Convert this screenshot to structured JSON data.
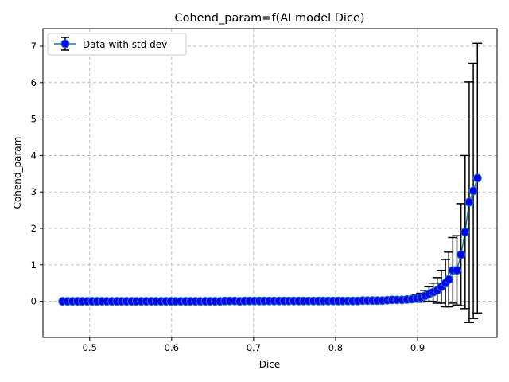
{
  "chart_data": {
    "type": "scatter",
    "title": "Cohend_param=f(AI model Dice)",
    "xlabel": "Dice",
    "ylabel": "Cohend_param",
    "xlim": [
      0.443,
      0.997
    ],
    "ylim": [
      -0.99,
      7.48
    ],
    "xticks": [
      0.5,
      0.6,
      0.7,
      0.8,
      0.9
    ],
    "yticks": [
      0,
      1,
      2,
      3,
      4,
      5,
      6,
      7
    ],
    "xtick_labels": [
      "0.5",
      "0.6",
      "0.7",
      "0.8",
      "0.9"
    ],
    "ytick_labels": [
      "0",
      "1",
      "2",
      "3",
      "4",
      "5",
      "6",
      "7"
    ],
    "grid": true,
    "legend": {
      "position": "top-left",
      "label": "Data with std dev"
    },
    "colors": {
      "marker_fill": "#0000ff",
      "marker_edge": "#1f77b4",
      "line": "#1f77b4",
      "errorbar": "#000000"
    },
    "series": [
      {
        "name": "Data with std dev",
        "x": [
          0.467,
          0.473,
          0.479,
          0.485,
          0.491,
          0.497,
          0.503,
          0.509,
          0.515,
          0.521,
          0.527,
          0.533,
          0.539,
          0.545,
          0.551,
          0.557,
          0.563,
          0.569,
          0.575,
          0.581,
          0.587,
          0.593,
          0.599,
          0.605,
          0.611,
          0.617,
          0.623,
          0.629,
          0.635,
          0.641,
          0.647,
          0.653,
          0.659,
          0.665,
          0.671,
          0.677,
          0.683,
          0.689,
          0.695,
          0.701,
          0.707,
          0.713,
          0.719,
          0.725,
          0.731,
          0.737,
          0.743,
          0.749,
          0.755,
          0.761,
          0.767,
          0.773,
          0.779,
          0.785,
          0.791,
          0.797,
          0.803,
          0.809,
          0.815,
          0.821,
          0.827,
          0.833,
          0.839,
          0.845,
          0.851,
          0.857,
          0.863,
          0.869,
          0.875,
          0.881,
          0.887,
          0.893,
          0.899,
          0.904,
          0.909,
          0.914,
          0.919,
          0.924,
          0.929,
          0.934,
          0.938,
          0.943,
          0.948,
          0.953,
          0.958,
          0.963,
          0.968,
          0.973
        ],
        "y": [
          0,
          0,
          0,
          0,
          0,
          0,
          0,
          0,
          0,
          0,
          0,
          0,
          0,
          0,
          0,
          0,
          0,
          0,
          0,
          0,
          0,
          0,
          0,
          0,
          0,
          0,
          0,
          0,
          0,
          0,
          0,
          0,
          0,
          0.01,
          0.01,
          0.01,
          0,
          0.01,
          0.01,
          0.01,
          0.01,
          0.01,
          0.01,
          0.01,
          0.01,
          0.01,
          0.01,
          0.01,
          0.01,
          0.01,
          0.01,
          0.01,
          0.01,
          0.01,
          0.01,
          0.01,
          0.01,
          0.01,
          0.01,
          0.01,
          0.01,
          0.02,
          0.02,
          0.02,
          0.02,
          0.02,
          0.03,
          0.04,
          0.04,
          0.04,
          0.05,
          0.06,
          0.08,
          0.1,
          0.15,
          0.2,
          0.25,
          0.3,
          0.4,
          0.5,
          0.6,
          0.85,
          0.85,
          1.28,
          1.9,
          2.72,
          3.03,
          3.38
        ],
        "err": [
          0,
          0,
          0,
          0,
          0,
          0,
          0,
          0,
          0,
          0,
          0,
          0,
          0,
          0,
          0,
          0,
          0,
          0,
          0,
          0,
          0,
          0,
          0,
          0,
          0,
          0,
          0,
          0,
          0,
          0,
          0,
          0,
          0,
          0,
          0,
          0,
          0,
          0,
          0,
          0,
          0,
          0,
          0,
          0,
          0,
          0,
          0,
          0,
          0,
          0,
          0,
          0,
          0,
          0,
          0,
          0,
          0,
          0,
          0,
          0,
          0,
          0,
          0,
          0,
          0,
          0,
          0,
          0,
          0,
          0,
          0.05,
          0.08,
          0.1,
          0.12,
          0.15,
          0.2,
          0.25,
          0.35,
          0.45,
          0.65,
          0.75,
          0.9,
          0.95,
          1.4,
          2.1,
          3.3,
          3.5,
          3.7
        ]
      }
    ]
  }
}
